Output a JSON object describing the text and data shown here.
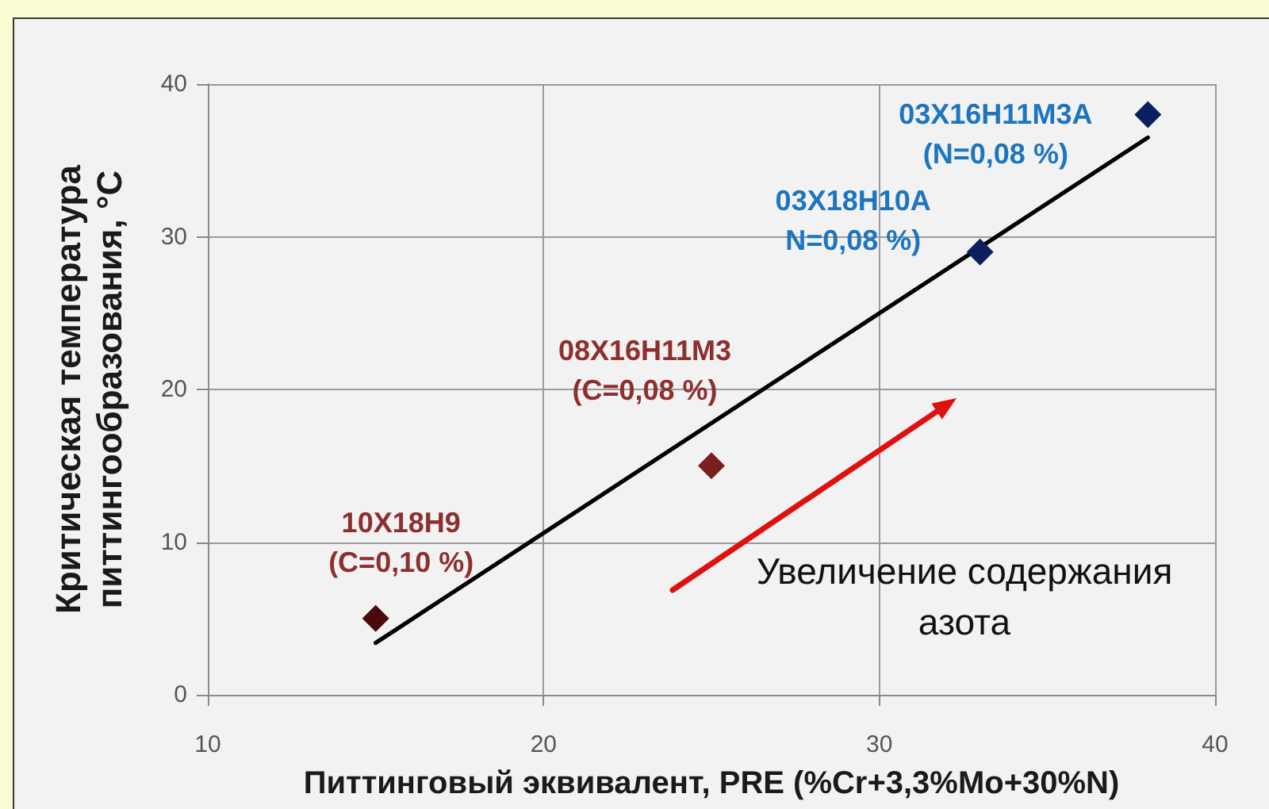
{
  "chart_data": {
    "type": "scatter",
    "xlabel": "Питтинговый эквивалент, PRE (%Cr+3,3%Mo+30%N)",
    "ylabel": "Критическая температура питтингообразования, °C",
    "series": [
      {
        "type": "scatter",
        "x": [
          15,
          25,
          33,
          38
        ],
        "values": [
          5,
          15,
          29,
          38
        ],
        "colors": [
          "#4a0a0a",
          "#7a1e1e",
          "#0a1f60",
          "#0a1f60"
        ],
        "marker": "diamond"
      },
      {
        "type": "line",
        "x": [
          15,
          38
        ],
        "values": [
          3.4,
          36.5
        ],
        "color": "#000000",
        "marker": "none",
        "line_style": "solid"
      }
    ],
    "xlim": [
      10,
      40
    ],
    "xticks": [
      10,
      20,
      30,
      40
    ],
    "ylim": [
      0,
      40
    ],
    "yticks": [
      0,
      10,
      20,
      30,
      40
    ],
    "grid": true,
    "annotations": [
      {
        "text": "10Х18Н9 (C=0,10 %)",
        "x": 15,
        "y": 5
      },
      {
        "text": "08Х16Н11М3 (C=0,08 %)",
        "x": 25,
        "y": 15
      },
      {
        "text": "03Х18Н10А N=0,08 %)",
        "x": 33,
        "y": 29
      },
      {
        "text": "03Х16Н11М3А (N=0,08 %)",
        "x": 38,
        "y": 38
      },
      "Увеличение содержания азота"
    ]
  }
}
